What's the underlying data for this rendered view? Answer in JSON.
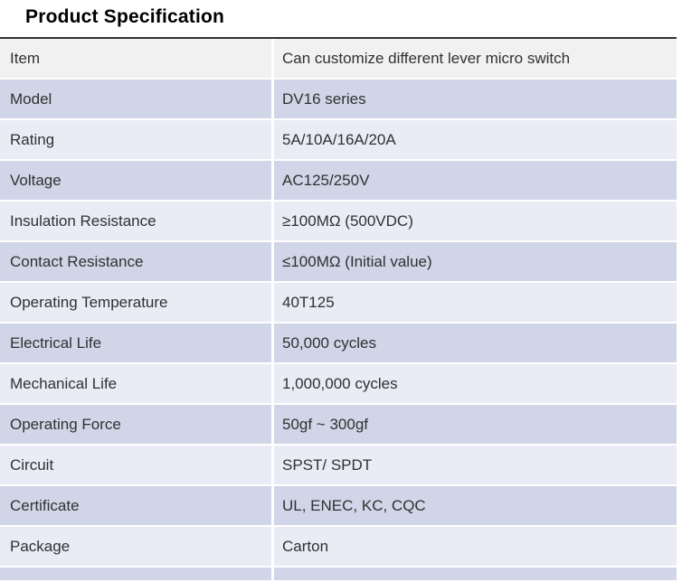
{
  "title": "Product Specification",
  "table": {
    "rows": [
      {
        "label": "Item",
        "value": "Can customize different lever micro switch"
      },
      {
        "label": "Model",
        "value": "DV16 series"
      },
      {
        "label": "Rating",
        "value": "5A/10A/16A/20A"
      },
      {
        "label": "Voltage",
        "value": "AC125/250V"
      },
      {
        "label": "Insulation Resistance",
        "value": "≥100MΩ (500VDC)"
      },
      {
        "label": "Contact Resistance",
        "value": "≤100MΩ (Initial value)"
      },
      {
        "label": "Operating Temperature",
        "value": "40T125"
      },
      {
        "label": "Electrical Life",
        "value": "50,000 cycles"
      },
      {
        "label": "Mechanical Life",
        "value": "1,000,000 cycles"
      },
      {
        "label": "Operating Force",
        "value": "50gf ~ 300gf"
      },
      {
        "label": "Circuit",
        "value": "SPST/ SPDT"
      },
      {
        "label": "Certificate",
        "value": "UL, ENEC, KC, CQC"
      },
      {
        "label": "Package",
        "value": "Carton"
      }
    ]
  },
  "colors": {
    "row_header": "#f1f1f2",
    "row_lavender": "#d0d5e8",
    "row_pale": "#e9ebf5",
    "border_top": "#2f2f2f",
    "text": "#313131",
    "title": "#000000"
  }
}
